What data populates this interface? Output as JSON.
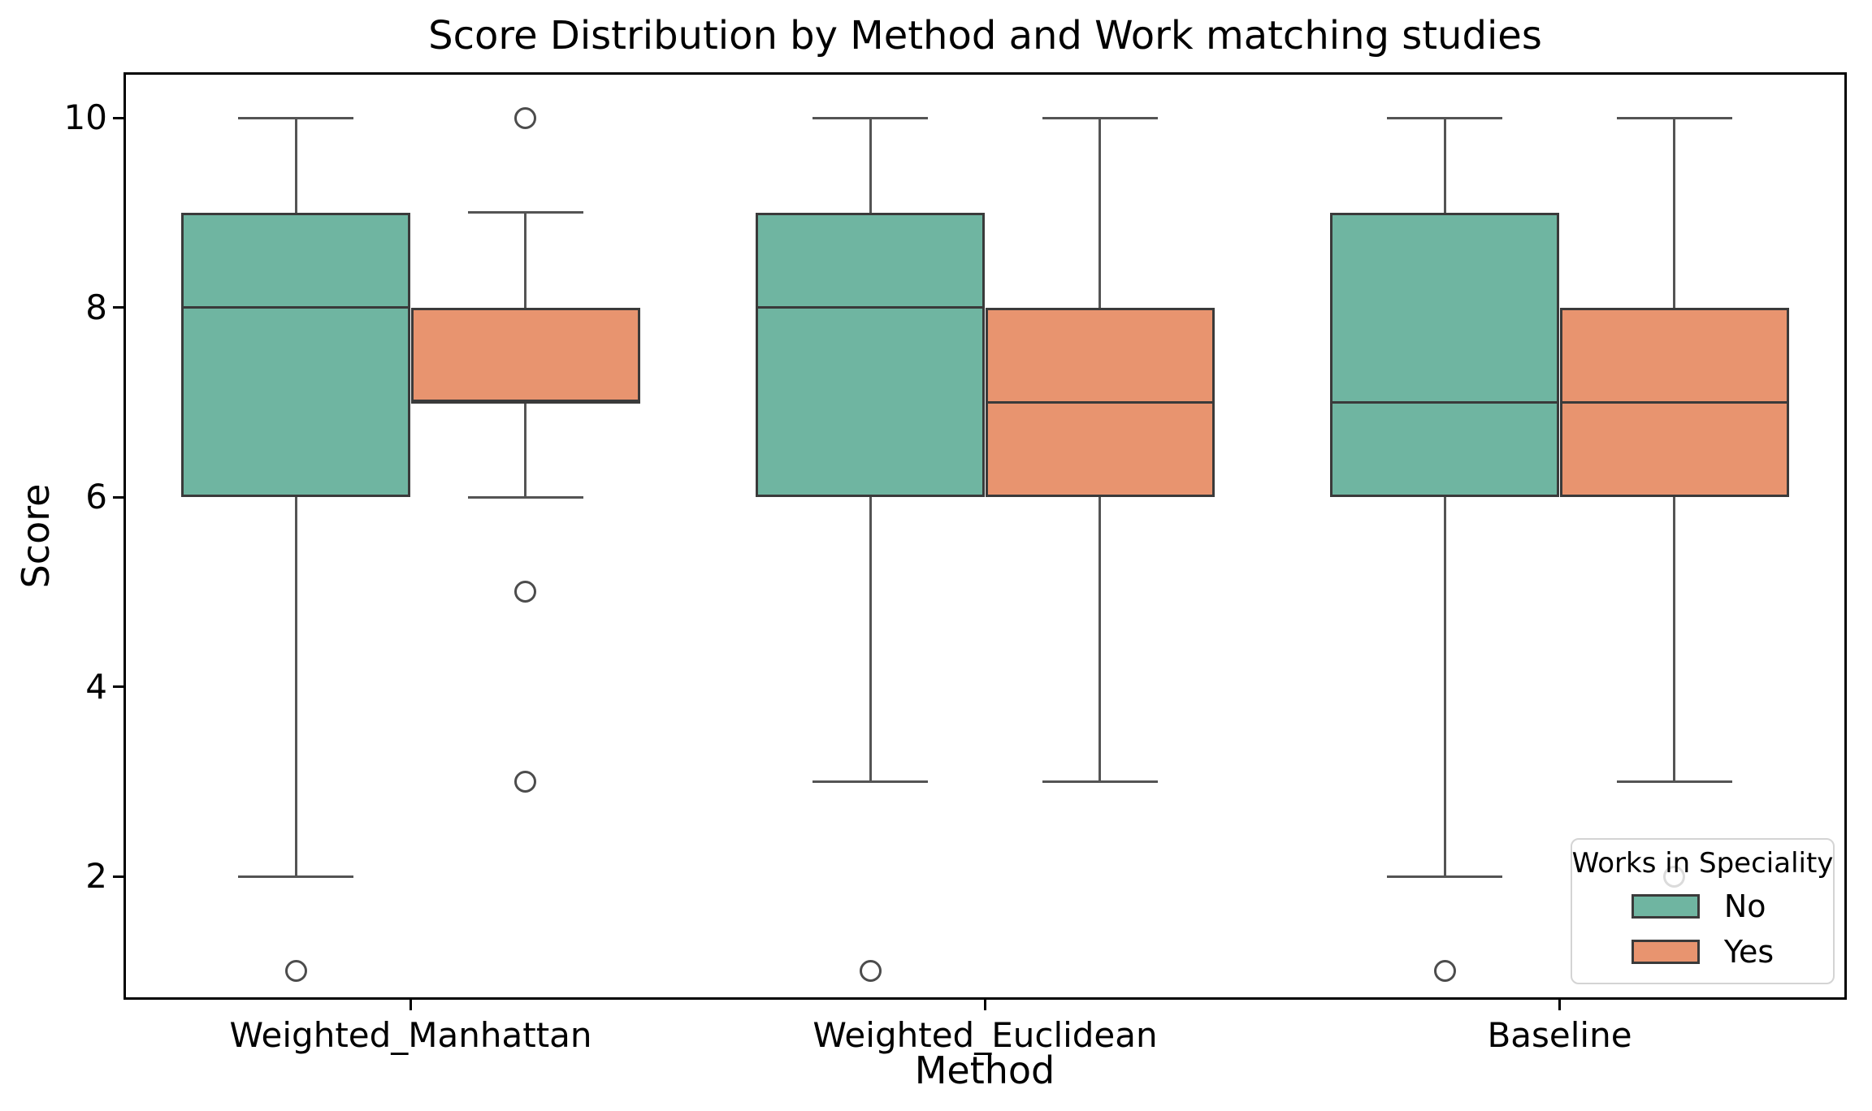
{
  "figure": {
    "title": "Score Distribution by Method and Work matching studies",
    "xlabel": "Method",
    "ylabel": "Score"
  },
  "legend": {
    "title": "Works in Speciality",
    "entries": [
      {
        "label": "No",
        "color": "#6fb5a1"
      },
      {
        "label": "Yes",
        "color": "#e8946f"
      }
    ],
    "position": "lower right"
  },
  "chart_data": {
    "type": "boxplot",
    "title": "Score Distribution by Method and Work matching studies",
    "xlabel": "Method",
    "ylabel": "Score",
    "categories": [
      "Weighted_Manhattan",
      "Weighted_Euclidean",
      "Baseline"
    ],
    "hue_title": "Works in Speciality",
    "hue_values": [
      "No",
      "Yes"
    ],
    "yticks": [
      2,
      4,
      6,
      8,
      10
    ],
    "ylim": [
      0.7,
      10.48
    ],
    "xlim": [
      -0.5,
      2.5
    ],
    "grid": false,
    "legend_position": "lower right",
    "series": [
      {
        "name": "No",
        "color": "#6fb5a1",
        "boxes": [
          {
            "category": "Weighted_Manhattan",
            "whislo": 2,
            "q1": 6,
            "med": 8,
            "q3": 9,
            "whishi": 10,
            "fliers": [
              1
            ]
          },
          {
            "category": "Weighted_Euclidean",
            "whislo": 3,
            "q1": 6,
            "med": 8,
            "q3": 9,
            "whishi": 10,
            "fliers": [
              1
            ]
          },
          {
            "category": "Baseline",
            "whislo": 2,
            "q1": 6,
            "med": 7,
            "q3": 9,
            "whishi": 10,
            "fliers": [
              1
            ]
          }
        ]
      },
      {
        "name": "Yes",
        "color": "#e8946f",
        "boxes": [
          {
            "category": "Weighted_Manhattan",
            "whislo": 6,
            "q1": 7,
            "med": 7,
            "q3": 8,
            "whishi": 9,
            "fliers": [
              10,
              5,
              3
            ]
          },
          {
            "category": "Weighted_Euclidean",
            "whislo": 3,
            "q1": 6,
            "med": 7,
            "q3": 8,
            "whishi": 10,
            "fliers": []
          },
          {
            "category": "Baseline",
            "whislo": 3,
            "q1": 6,
            "med": 7,
            "q3": 8,
            "whishi": 10,
            "fliers": [
              2
            ]
          }
        ]
      }
    ],
    "style_colors": {
      "box_edge": "#3a3a3a",
      "median": "#3a3a3a",
      "whisker": "#545454",
      "flier_edge": "#4c4c4c",
      "spine": "#000000",
      "background": "#ffffff"
    }
  }
}
